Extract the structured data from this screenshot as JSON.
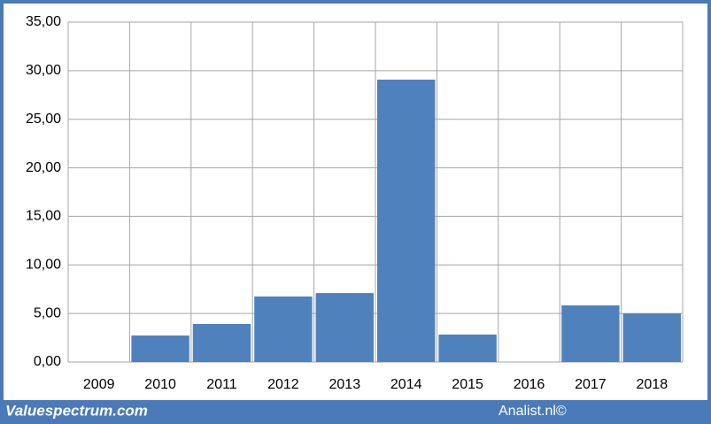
{
  "chart_data": {
    "type": "bar",
    "categories": [
      "2009",
      "2010",
      "2011",
      "2012",
      "2013",
      "2014",
      "2015",
      "2016",
      "2017",
      "2018"
    ],
    "values": [
      null,
      2.73,
      3.92,
      6.75,
      7.1,
      29.08,
      2.83,
      null,
      5.83,
      5.01
    ],
    "color": "#4f81bd",
    "ylim": [
      0,
      35
    ],
    "yticks": [
      {
        "value": 0,
        "label": "0,00"
      },
      {
        "value": 5,
        "label": "5,00"
      },
      {
        "value": 10,
        "label": "10,00"
      },
      {
        "value": 15,
        "label": "15,00"
      },
      {
        "value": 20,
        "label": "20,00"
      },
      {
        "value": 25,
        "label": "25,00"
      },
      {
        "value": 30,
        "label": "30,00"
      },
      {
        "value": 35,
        "label": "35,00"
      }
    ],
    "grid": true,
    "footer_left": "Valuespectrum.com",
    "footer_right": "Analist.nl©"
  }
}
